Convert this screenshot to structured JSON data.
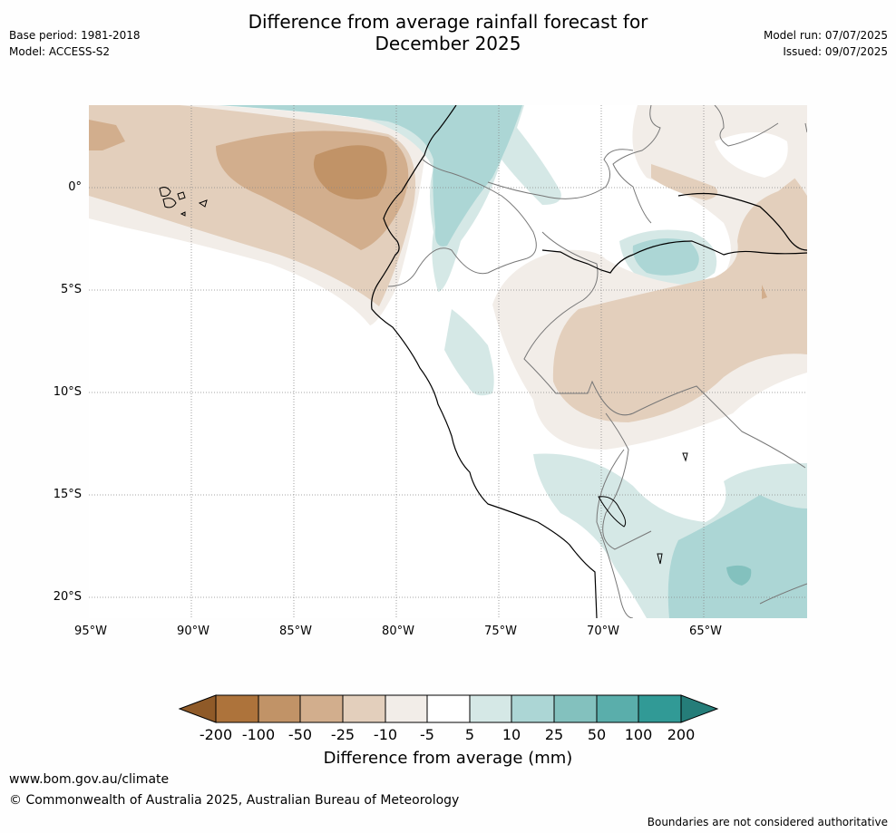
{
  "header": {
    "title_line1": "Difference from average rainfall forecast for",
    "title_line2": "December 2025",
    "base_period": "Base period: 1981-2018",
    "model": "Model: ACCESS-S2",
    "model_run": "Model run: 07/07/2025",
    "issued": "Issued: 09/07/2025"
  },
  "map": {
    "lat_labels": [
      "0°",
      "5°S",
      "10°S",
      "15°S",
      "20°S"
    ],
    "lon_labels": [
      "95°W",
      "90°W",
      "85°W",
      "80°W",
      "75°W",
      "70°W",
      "65°W"
    ],
    "colors": {
      "dry_200": "#8f5a28",
      "dry_100": "#ad733b",
      "dry_50": "#c19367",
      "dry_25": "#d2ae8d",
      "dry_10": "#e3cfbc",
      "dry_5": "#f2ede8",
      "neutral": "#ffffff",
      "wet_5": "#d5e8e6",
      "wet_10": "#acd6d5",
      "wet_25": "#83c1be",
      "wet_50": "#5aaeab",
      "wet_100": "#319a96",
      "wet_200": "#257d79"
    }
  },
  "colorbar": {
    "labels": [
      "-200",
      "-100",
      "-50",
      "-25",
      "-10",
      "-5",
      "5",
      "10",
      "25",
      "50",
      "100",
      "200"
    ],
    "title": "Difference from average (mm)"
  },
  "footer": {
    "url": "www.bom.gov.au/climate",
    "copyright": "© Commonwealth of Australia 2025, Australian Bureau of Meteorology",
    "disclaimer": "Boundaries are not considered authoritative"
  }
}
